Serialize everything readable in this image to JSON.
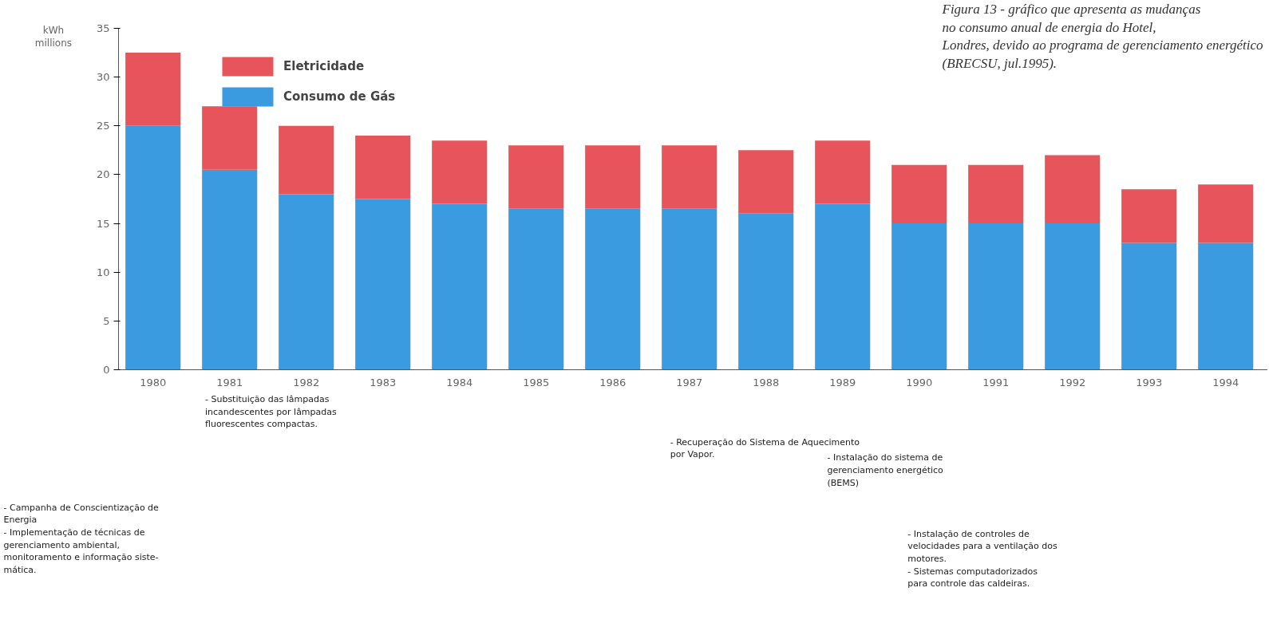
{
  "chart_data": {
    "type": "bar",
    "stacked": true,
    "title": "Figura 13 - gráfico que apresenta as mudanças\nno consumo anual de energia do Hotel,\nLondres, devido ao programa de gerenciamento energético\n(BRECSU, jul.1995).",
    "ylabel": "kWh\nmillions",
    "categories": [
      "1980",
      "1981",
      "1982",
      "1983",
      "1984",
      "1985",
      "1986",
      "1987",
      "1988",
      "1989",
      "1990",
      "1991",
      "1992",
      "1993",
      "1994"
    ],
    "series": [
      {
        "name": "Consumo de Gás",
        "color": "#3a9be0",
        "values": [
          25,
          20.5,
          18,
          17.5,
          17,
          16.5,
          16.5,
          16.5,
          16,
          17,
          15,
          15,
          15,
          13,
          13
        ]
      },
      {
        "name": "Eletricidade",
        "color": "#e8545c",
        "values": [
          7.5,
          6.5,
          7,
          6.5,
          6.5,
          6.5,
          6.5,
          6.5,
          6.5,
          6.5,
          6,
          6,
          7,
          5.5,
          6
        ]
      }
    ],
    "ylim": [
      0,
      35
    ],
    "yticks": [
      0,
      5,
      10,
      15,
      20,
      25,
      30,
      35
    ],
    "grid": false,
    "legend": "top left",
    "annotations": [
      "- Substituição das lâmpadas\nincandescentes por lâmpadas\nfluorescentes compactas.",
      "- Recuperação do Sistema de Aquecimento\npor Vapor.",
      "- Instalação do sistema de\ngerenciamento energético\n(BEMS)",
      "- Campanha de Conscientização de\nEnergia\n- Implementação de técnicas de\ngerenciamento ambiental,\nmonitoramento e informação siste-\nmática.",
      "- Instalação de controles de\nvelocidades para a ventilação dos\nmotores.\n- Sistemas computadorizados\npara controle das caldeiras."
    ]
  }
}
